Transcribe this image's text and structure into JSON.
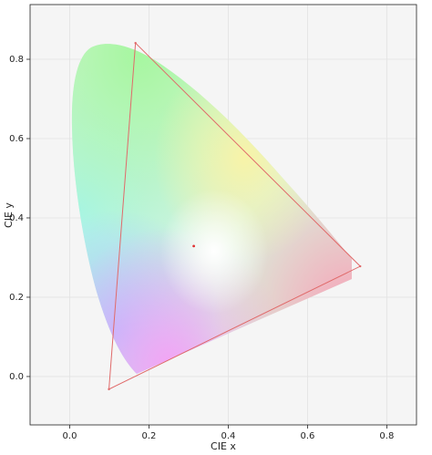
{
  "chart_data": {
    "type": "line",
    "xlabel": "CIE x",
    "ylabel": "CIE y",
    "xlim": [
      -0.1,
      0.875
    ],
    "ylim": [
      -0.122,
      0.938
    ],
    "xticks": [
      {
        "value": 0,
        "label": "0.0"
      },
      0.2,
      0.4,
      0.6,
      0.8
    ],
    "yticks": [
      {
        "value": 0,
        "label": "0.0"
      },
      0.2,
      0.4,
      0.6,
      0.8
    ],
    "grid": true,
    "series": [
      {
        "x": [
          0.166,
          0.733,
          0.099
        ],
        "values": [
          0.841,
          0.278,
          -0.032
        ],
        "color": "#e06a6a",
        "closed": true
      },
      {
        "x": [
          0.313
        ],
        "values": [
          0.329
        ],
        "color": "#e03030",
        "marker": true
      }
    ]
  }
}
